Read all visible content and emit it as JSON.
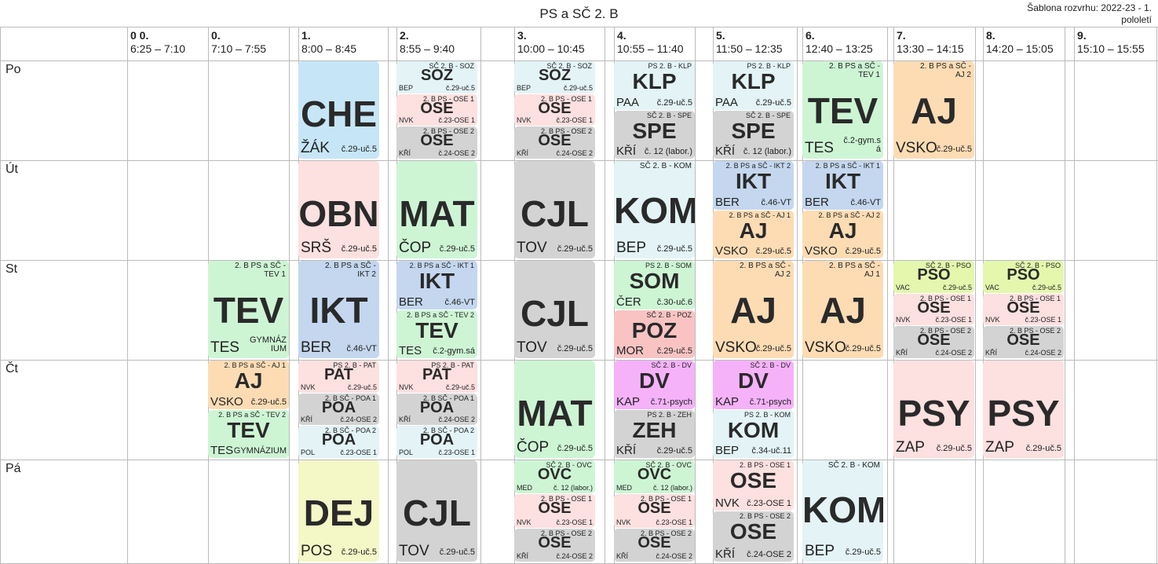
{
  "header": {
    "title": "PS a SČ 2. B",
    "template_line1": "Šablona rozvrhu: 2022-23 - 1.",
    "template_line2": "pololetí"
  },
  "periods": [
    {
      "num": "0 0.",
      "time": "6:25 – 7:10"
    },
    {
      "num": "0.",
      "time": "7:10 – 7:55"
    },
    {
      "num": "1.",
      "time": "8:00 – 8:45"
    },
    {
      "num": "2.",
      "time": "8:55 – 9:40"
    },
    {
      "num": "3.",
      "time": "10:00 – 10:45"
    },
    {
      "num": "4.",
      "time": "10:55 – 11:40"
    },
    {
      "num": "5.",
      "time": "11:50 – 12:35"
    },
    {
      "num": "6.",
      "time": "12:40 – 13:25"
    },
    {
      "num": "7.",
      "time": "13:30 – 14:15"
    },
    {
      "num": "8.",
      "time": "14:20 – 15:05"
    },
    {
      "num": "9.",
      "time": "15:10 – 15:55"
    }
  ],
  "days": [
    "Po",
    "Út",
    "St",
    "Čt",
    "Pá"
  ],
  "colors": {
    "blue": "#c6e6f7",
    "pink": "#fde0e0",
    "gray": "#d3d3d3",
    "lightcyan": "#e3f3f6",
    "green": "#cdf5d4",
    "peach": "#fddcb4",
    "steel": "#c4d7ef",
    "lime": "#e4f7ad",
    "yellow": "#f4f7c6",
    "magenta": "#f5b2f9",
    "rose": "#f9c3c3"
  },
  "lessons": [
    {
      "day": 0,
      "period": 2,
      "slot": 0,
      "slots": 1,
      "color": "blue",
      "group": "",
      "subject": "CHE",
      "teacher": "ŽÁK",
      "room": "č.29-uč.5"
    },
    {
      "day": 0,
      "period": 3,
      "slot": 0,
      "slots": 3,
      "color": "lightcyan",
      "group": "SČ 2. B - SOZ",
      "subject": "SOZ",
      "teacher": "BEP",
      "room": "č.29-uč.5"
    },
    {
      "day": 0,
      "period": 3,
      "slot": 1,
      "slots": 3,
      "color": "pink",
      "group": "2. B PS - OSE 1",
      "subject": "OSE",
      "teacher": "NVK",
      "room": "č.23-OSE 1"
    },
    {
      "day": 0,
      "period": 3,
      "slot": 2,
      "slots": 3,
      "color": "gray",
      "group": "2. B PS - OSE 2",
      "subject": "OSE",
      "teacher": "KŘÍ",
      "room": "č.24-OSE 2"
    },
    {
      "day": 0,
      "period": 4,
      "slot": 0,
      "slots": 3,
      "color": "lightcyan",
      "group": "SČ 2. B - SOZ",
      "subject": "SOZ",
      "teacher": "BEP",
      "room": "č.29-uč.5"
    },
    {
      "day": 0,
      "period": 4,
      "slot": 1,
      "slots": 3,
      "color": "pink",
      "group": "2. B PS - OSE 1",
      "subject": "OSE",
      "teacher": "NVK",
      "room": "č.23-OSE 1"
    },
    {
      "day": 0,
      "period": 4,
      "slot": 2,
      "slots": 3,
      "color": "gray",
      "group": "2. B PS - OSE 2",
      "subject": "OSE",
      "teacher": "KŘÍ",
      "room": "č.24-OSE 2"
    },
    {
      "day": 0,
      "period": 5,
      "slot": 0,
      "slots": 2,
      "color": "lightcyan",
      "group": "PS 2. B - KLP",
      "subject": "KLP",
      "teacher": "PAA",
      "room": "č.29-uč.5"
    },
    {
      "day": 0,
      "period": 5,
      "slot": 1,
      "slots": 2,
      "color": "gray",
      "group": "SČ 2. B - SPE",
      "subject": "SPE",
      "teacher": "KŘÍ",
      "room": "č. 12 (labor.)"
    },
    {
      "day": 0,
      "period": 6,
      "slot": 0,
      "slots": 2,
      "color": "lightcyan",
      "group": "PS 2. B - KLP",
      "subject": "KLP",
      "teacher": "PAA",
      "room": "č.29-uč.5"
    },
    {
      "day": 0,
      "period": 6,
      "slot": 1,
      "slots": 2,
      "color": "gray",
      "group": "SČ 2. B - SPE",
      "subject": "SPE",
      "teacher": "KŘÍ",
      "room": "č. 12 (labor.)"
    },
    {
      "day": 0,
      "period": 7,
      "slot": 0,
      "slots": 1,
      "color": "green",
      "group": "2. B PS a SČ - TEV 1",
      "subject": "TEV",
      "teacher": "TES",
      "room": "č.2-gym.s á"
    },
    {
      "day": 0,
      "period": 8,
      "slot": 0,
      "slots": 1,
      "color": "peach",
      "group": "2. B PS a SČ - AJ 2",
      "subject": "AJ",
      "teacher": "VSKO",
      "room": "č.29-uč.5"
    },
    {
      "day": 1,
      "period": 2,
      "slot": 0,
      "slots": 1,
      "color": "pink",
      "group": "",
      "subject": "OBN",
      "teacher": "SRŠ",
      "room": "č.29-uč.5"
    },
    {
      "day": 1,
      "period": 3,
      "slot": 0,
      "slots": 1,
      "color": "green",
      "group": "",
      "subject": "MAT",
      "teacher": "ČOP",
      "room": "č.29-uč.5"
    },
    {
      "day": 1,
      "period": 4,
      "slot": 0,
      "slots": 1,
      "color": "gray",
      "group": "",
      "subject": "CJL",
      "teacher": "TOV",
      "room": "č.29-uč.5"
    },
    {
      "day": 1,
      "period": 5,
      "slot": 0,
      "slots": 1,
      "color": "lightcyan",
      "group": "SČ 2. B - KOM",
      "subject": "KOM",
      "teacher": "BEP",
      "room": "č.29-uč.5"
    },
    {
      "day": 1,
      "period": 6,
      "slot": 0,
      "slots": 2,
      "color": "steel",
      "group": "2. B PS a SČ - IKT 2",
      "subject": "IKT",
      "teacher": "BER",
      "room": "č.46-VT"
    },
    {
      "day": 1,
      "period": 6,
      "slot": 1,
      "slots": 2,
      "color": "peach",
      "group": "2. B PS a SČ - AJ 1",
      "subject": "AJ",
      "teacher": "VSKO",
      "room": "č.29-uč.5"
    },
    {
      "day": 1,
      "period": 7,
      "slot": 0,
      "slots": 2,
      "color": "steel",
      "group": "2. B PS a SČ - IKT 1",
      "subject": "IKT",
      "teacher": "BER",
      "room": "č.46-VT"
    },
    {
      "day": 1,
      "period": 7,
      "slot": 1,
      "slots": 2,
      "color": "peach",
      "group": "2. B PS a SČ - AJ 2",
      "subject": "AJ",
      "teacher": "VSKO",
      "room": "č.29-uč.5"
    },
    {
      "day": 2,
      "period": 1,
      "slot": 0,
      "slots": 1,
      "color": "green",
      "group": "2. B PS a SČ - TEV 1",
      "subject": "TEV",
      "teacher": "TES",
      "room": "GYMNÁZ IUM"
    },
    {
      "day": 2,
      "period": 2,
      "slot": 0,
      "slots": 1,
      "color": "steel",
      "group": "2. B PS a SČ - IKT 2",
      "subject": "IKT",
      "teacher": "BER",
      "room": "č.46-VT"
    },
    {
      "day": 2,
      "period": 3,
      "slot": 0,
      "slots": 2,
      "color": "steel",
      "group": "2. B PS a SČ - IKT 1",
      "subject": "IKT",
      "teacher": "BER",
      "room": "č.46-VT"
    },
    {
      "day": 2,
      "period": 3,
      "slot": 1,
      "slots": 2,
      "color": "green",
      "group": "2. B PS a SČ - TEV 2",
      "subject": "TEV",
      "teacher": "TES",
      "room": "č.2-gym.sá"
    },
    {
      "day": 2,
      "period": 4,
      "slot": 0,
      "slots": 1,
      "color": "gray",
      "group": "",
      "subject": "CJL",
      "teacher": "TOV",
      "room": "č.29-uč.5"
    },
    {
      "day": 2,
      "period": 5,
      "slot": 0,
      "slots": 2,
      "color": "green",
      "group": "PS 2. B - SOM",
      "subject": "SOM",
      "teacher": "ČER",
      "room": "č.30-uč.6"
    },
    {
      "day": 2,
      "period": 5,
      "slot": 1,
      "slots": 2,
      "color": "rose",
      "group": "SČ 2. B - POZ",
      "subject": "POZ",
      "teacher": "MOR",
      "room": "č.29-uč.5"
    },
    {
      "day": 2,
      "period": 6,
      "slot": 0,
      "slots": 1,
      "color": "peach",
      "group": "2. B PS a SČ - AJ 2",
      "subject": "AJ",
      "teacher": "VSKO",
      "room": "č.29-uč.5"
    },
    {
      "day": 2,
      "period": 7,
      "slot": 0,
      "slots": 1,
      "color": "peach",
      "group": "2. B PS a SČ - AJ 1",
      "subject": "AJ",
      "teacher": "VSKO",
      "room": "č.29-uč.5"
    },
    {
      "day": 2,
      "period": 8,
      "slot": 0,
      "slots": 3,
      "color": "lime",
      "group": "SČ 2. B - PSO",
      "subject": "PSO",
      "teacher": "VAC",
      "room": "č.29-uč.5"
    },
    {
      "day": 2,
      "period": 8,
      "slot": 1,
      "slots": 3,
      "color": "pink",
      "group": "2. B PS - OSE 1",
      "subject": "OSE",
      "teacher": "NVK",
      "room": "č.23-OSE 1"
    },
    {
      "day": 2,
      "period": 8,
      "slot": 2,
      "slots": 3,
      "color": "gray",
      "group": "2. B PS - OSE 2",
      "subject": "OSE",
      "teacher": "KŘÍ",
      "room": "č.24-OSE 2"
    },
    {
      "day": 2,
      "period": 9,
      "slot": 0,
      "slots": 3,
      "color": "lime",
      "group": "SČ 2. B - PSO",
      "subject": "PSO",
      "teacher": "VAC",
      "room": "č.29-uč.5"
    },
    {
      "day": 2,
      "period": 9,
      "slot": 1,
      "slots": 3,
      "color": "pink",
      "group": "2. B PS - OSE 1",
      "subject": "OSE",
      "teacher": "NVK",
      "room": "č.23-OSE 1"
    },
    {
      "day": 2,
      "period": 9,
      "slot": 2,
      "slots": 3,
      "color": "gray",
      "group": "2. B PS - OSE 2",
      "subject": "OSE",
      "teacher": "KŘÍ",
      "room": "č.24-OSE 2"
    },
    {
      "day": 3,
      "period": 1,
      "slot": 0,
      "slots": 2,
      "color": "peach",
      "group": "2. B PS a SČ - AJ 1",
      "subject": "AJ",
      "teacher": "VSKO",
      "room": "č.29-uč.5"
    },
    {
      "day": 3,
      "period": 1,
      "slot": 1,
      "slots": 2,
      "color": "green",
      "group": "2. B PS a SČ - TEV 2",
      "subject": "TEV",
      "teacher": "TES",
      "room": "GYMNÁZIUM"
    },
    {
      "day": 3,
      "period": 2,
      "slot": 0,
      "slots": 3,
      "color": "pink",
      "group": "PS 2. B - PAT",
      "subject": "PAT",
      "teacher": "NVK",
      "room": "č.29-uč.5"
    },
    {
      "day": 3,
      "period": 2,
      "slot": 1,
      "slots": 3,
      "color": "gray",
      "group": "2. B SČ - POA 1",
      "subject": "POA",
      "teacher": "KŘÍ",
      "room": "č.24-OSE 2"
    },
    {
      "day": 3,
      "period": 2,
      "slot": 2,
      "slots": 3,
      "color": "lightcyan",
      "group": "2. B SČ - POA 2",
      "subject": "POA",
      "teacher": "POL",
      "room": "č.23-OSE 1"
    },
    {
      "day": 3,
      "period": 3,
      "slot": 0,
      "slots": 3,
      "color": "pink",
      "group": "PS 2. B - PAT",
      "subject": "PAT",
      "teacher": "NVK",
      "room": "č.29-uč.5"
    },
    {
      "day": 3,
      "period": 3,
      "slot": 1,
      "slots": 3,
      "color": "gray",
      "group": "2. B SČ - POA 1",
      "subject": "POA",
      "teacher": "KŘÍ",
      "room": "č.24-OSE 2"
    },
    {
      "day": 3,
      "period": 3,
      "slot": 2,
      "slots": 3,
      "color": "lightcyan",
      "group": "2. B SČ - POA 2",
      "subject": "POA",
      "teacher": "POL",
      "room": "č.23-OSE 1"
    },
    {
      "day": 3,
      "period": 4,
      "slot": 0,
      "slots": 1,
      "color": "green",
      "group": "",
      "subject": "MAT",
      "teacher": "ČOP",
      "room": "č.29-uč.5"
    },
    {
      "day": 3,
      "period": 5,
      "slot": 0,
      "slots": 2,
      "color": "magenta",
      "group": "SČ 2. B - DV",
      "subject": "DV",
      "teacher": "KAP",
      "room": "č.71-psych"
    },
    {
      "day": 3,
      "period": 5,
      "slot": 1,
      "slots": 2,
      "color": "gray",
      "group": "PS 2. B - ZEH",
      "subject": "ZEH",
      "teacher": "KŘÍ",
      "room": "č.29-uč.5"
    },
    {
      "day": 3,
      "period": 6,
      "slot": 0,
      "slots": 2,
      "color": "magenta",
      "group": "SČ 2. B - DV",
      "subject": "DV",
      "teacher": "KAP",
      "room": "č.71-psych"
    },
    {
      "day": 3,
      "period": 6,
      "slot": 1,
      "slots": 2,
      "color": "lightcyan",
      "group": "PS 2. B - KOM",
      "subject": "KOM",
      "teacher": "BEP",
      "room": "č.34-uč.11"
    },
    {
      "day": 3,
      "period": 8,
      "slot": 0,
      "slots": 1,
      "color": "pink",
      "group": "",
      "subject": "PSY",
      "teacher": "ZAP",
      "room": "č.29-uč.5"
    },
    {
      "day": 3,
      "period": 9,
      "slot": 0,
      "slots": 1,
      "color": "pink",
      "group": "",
      "subject": "PSY",
      "teacher": "ZAP",
      "room": "č.29-uč.5"
    },
    {
      "day": 4,
      "period": 2,
      "slot": 0,
      "slots": 1,
      "color": "yellow",
      "group": "",
      "subject": "DEJ",
      "teacher": "POS",
      "room": "č.29-uč.5"
    },
    {
      "day": 4,
      "period": 3,
      "slot": 0,
      "slots": 1,
      "color": "gray",
      "group": "",
      "subject": "CJL",
      "teacher": "TOV",
      "room": "č.29-uč.5"
    },
    {
      "day": 4,
      "period": 4,
      "slot": 0,
      "slots": 3,
      "color": "green",
      "group": "SČ 2. B - OVC",
      "subject": "OVC",
      "teacher": "MED",
      "room": "č. 12 (labor.)"
    },
    {
      "day": 4,
      "period": 4,
      "slot": 1,
      "slots": 3,
      "color": "pink",
      "group": "2. B PS - OSE 1",
      "subject": "OSE",
      "teacher": "NVK",
      "room": "č.23-OSE 1"
    },
    {
      "day": 4,
      "period": 4,
      "slot": 2,
      "slots": 3,
      "color": "gray",
      "group": "2. B PS - OSE 2",
      "subject": "OSE",
      "teacher": "KŘÍ",
      "room": "č.24-OSE 2"
    },
    {
      "day": 4,
      "period": 5,
      "slot": 0,
      "slots": 3,
      "color": "green",
      "group": "SČ 2. B - OVC",
      "subject": "OVC",
      "teacher": "MED",
      "room": "č. 12 (labor.)"
    },
    {
      "day": 4,
      "period": 5,
      "slot": 1,
      "slots": 3,
      "color": "pink",
      "group": "2. B PS - OSE 1",
      "subject": "OSE",
      "teacher": "NVK",
      "room": "č.23-OSE 1"
    },
    {
      "day": 4,
      "period": 5,
      "slot": 2,
      "slots": 3,
      "color": "gray",
      "group": "2. B PS - OSE 2",
      "subject": "OSE",
      "teacher": "KŘÍ",
      "room": "č.24-OSE 2"
    },
    {
      "day": 4,
      "period": 6,
      "slot": 0,
      "slots": 2,
      "color": "pink",
      "group": "2. B PS - OSE 1",
      "subject": "OSE",
      "teacher": "NVK",
      "room": "č.23-OSE 1"
    },
    {
      "day": 4,
      "period": 6,
      "slot": 1,
      "slots": 2,
      "color": "gray",
      "group": "2. B PS - OSE 2",
      "subject": "OSE",
      "teacher": "KŘÍ",
      "room": "č.24-OSE 2"
    },
    {
      "day": 4,
      "period": 7,
      "slot": 0,
      "slots": 1,
      "color": "lightcyan",
      "group": "SČ 2. B - KOM",
      "subject": "KOM",
      "teacher": "BEP",
      "room": "č.29-uč.5"
    }
  ]
}
